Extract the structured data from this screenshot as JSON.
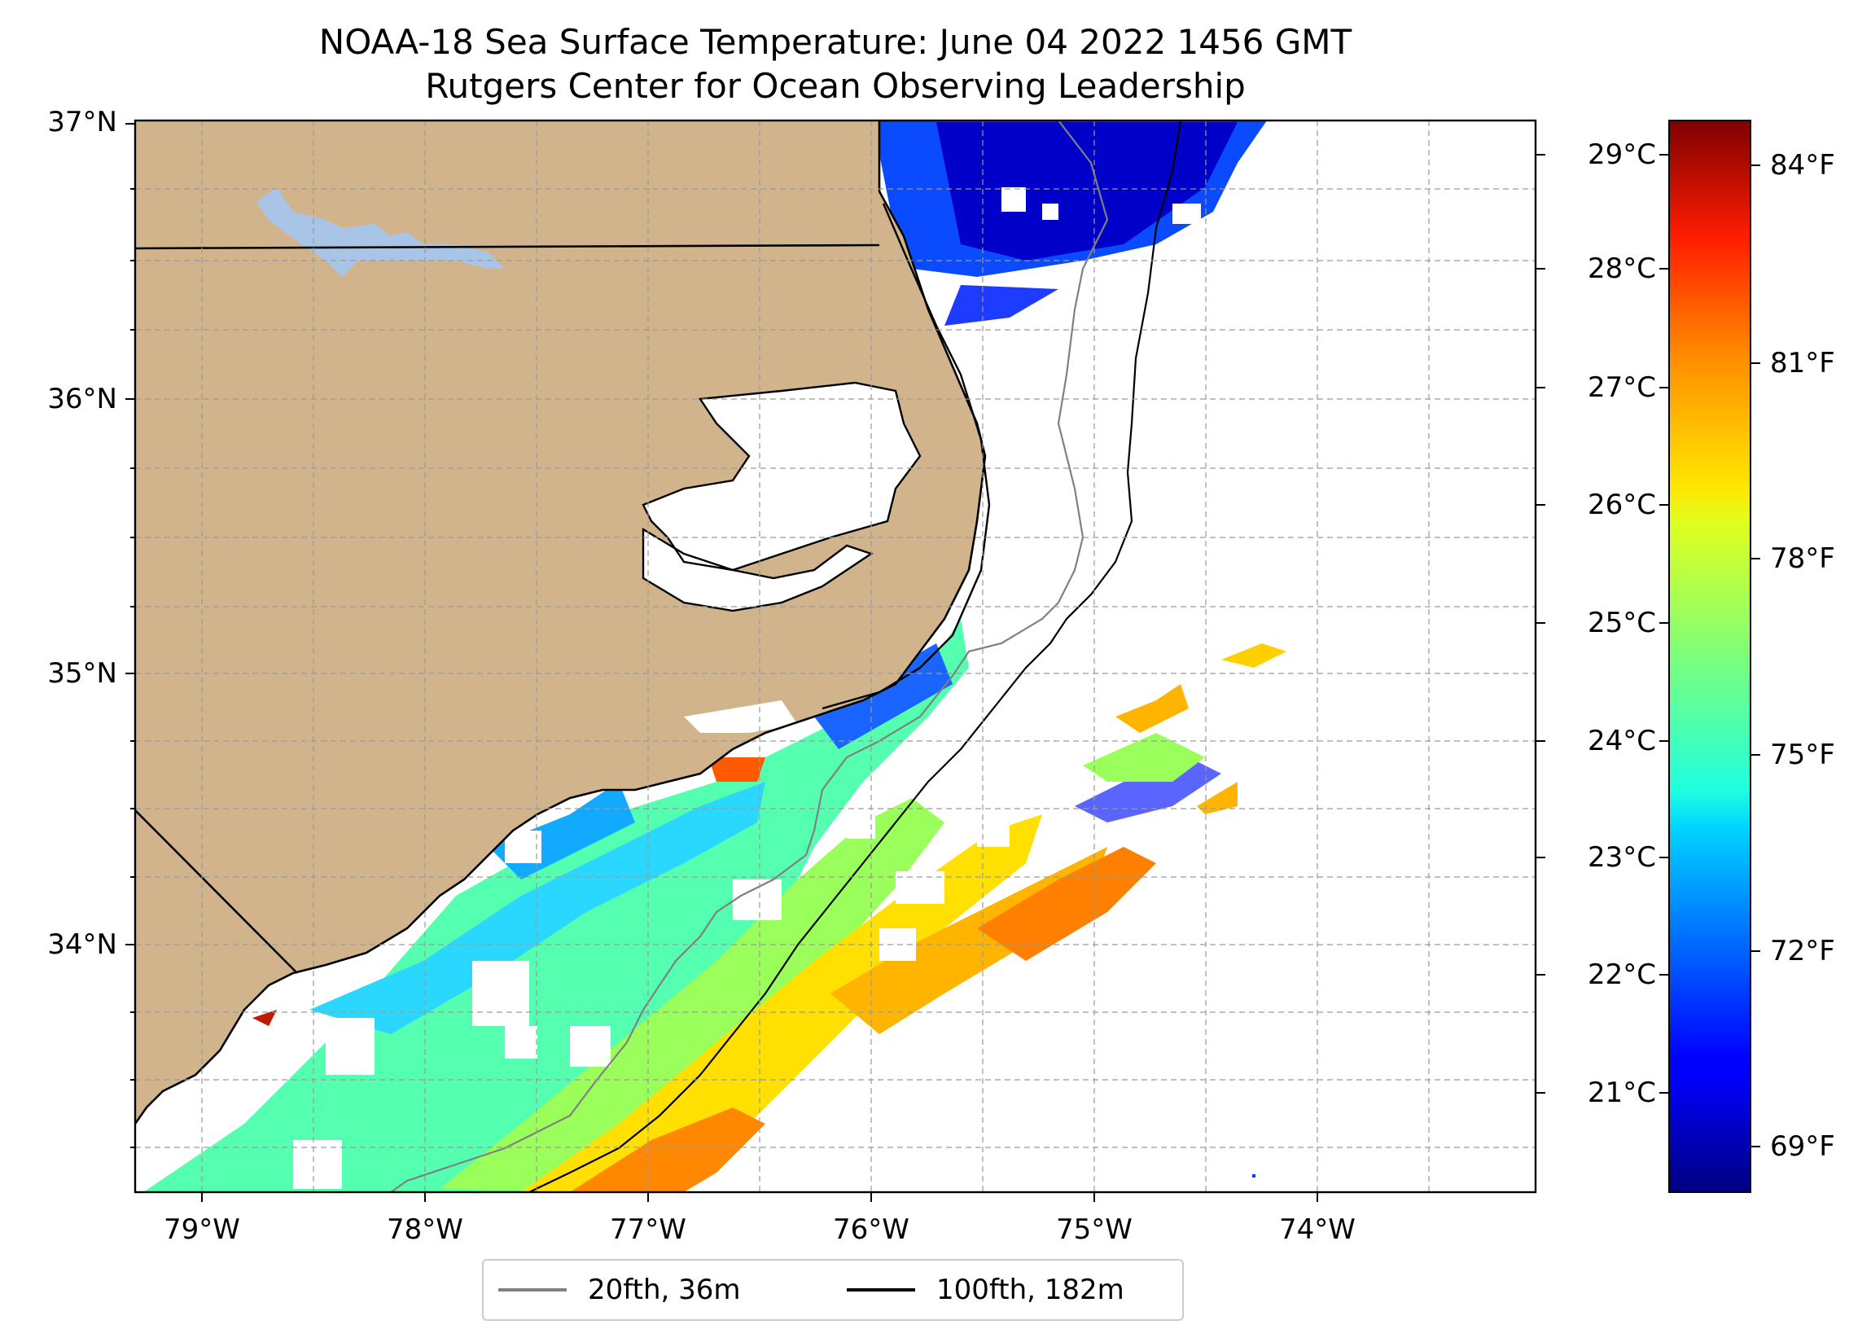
{
  "title": "NOAA-18 Sea Surface Temperature: June 04 2022 1456 GMT",
  "subtitle": "Rutgers Center for Ocean Observing Leadership",
  "map": {
    "lon_range": [
      -79.3,
      -72.3
    ],
    "lat_range": [
      33.1,
      37.0
    ],
    "lat_ticks": [
      "37°N",
      "36°N",
      "35°N",
      "34°N"
    ],
    "lon_ticks": [
      "79°W",
      "78°W",
      "77°W",
      "76°W",
      "75°W",
      "74°W"
    ],
    "land_color": "#d2b48c",
    "lake_color": "#a8c4e6",
    "coast_color": "#000000",
    "gridlines": true
  },
  "colorbar": {
    "colormap": "jet",
    "celsius_ticks": [
      "29°C",
      "28°C",
      "27°C",
      "26°C",
      "25°C",
      "24°C",
      "23°C",
      "22°C",
      "21°C"
    ],
    "fahrenheit_ticks": [
      "84°F",
      "81°F",
      "78°F",
      "75°F",
      "72°F",
      "69°F"
    ]
  },
  "legend": [
    {
      "label": "20fth, 36m",
      "color": "#808080"
    },
    {
      "label": "100fth, 182m",
      "color": "#000000"
    }
  ]
}
